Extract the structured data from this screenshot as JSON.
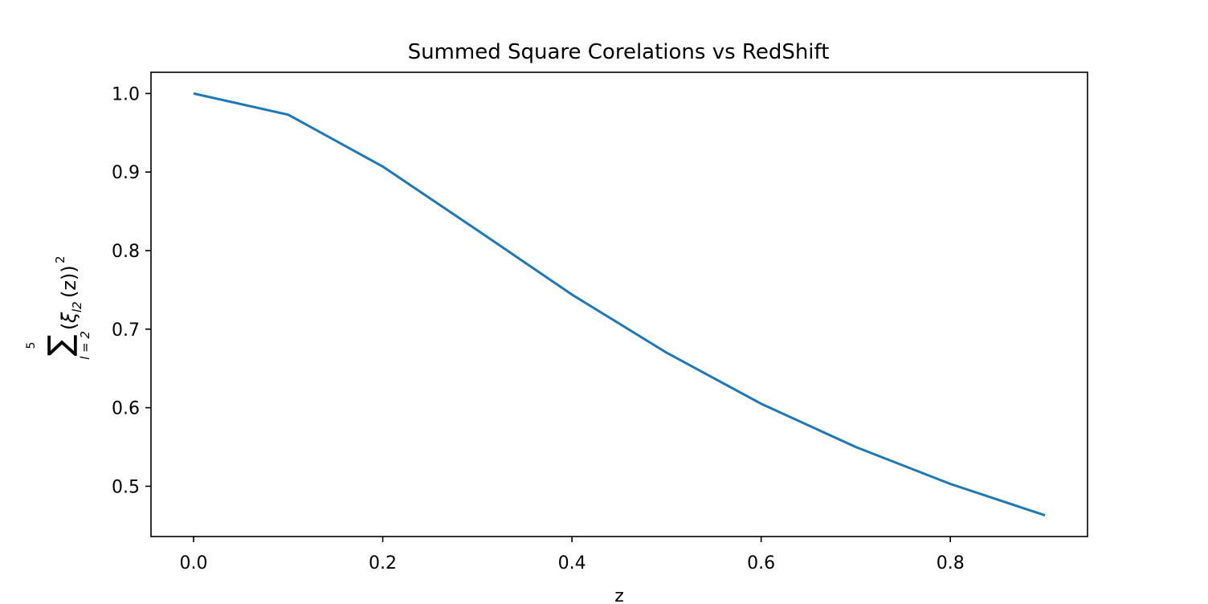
{
  "chart_data": {
    "type": "line",
    "title": "Summed Square Corelations vs RedShift",
    "xlabel": "z",
    "ylabel": {
      "sum_symbol": "∑",
      "upper_limit": "5",
      "lower_limit": "l = 2",
      "open_paren": "(",
      "xi": "ξ",
      "xi_subscript": "l2",
      "argument": "(z))",
      "exponent": "2"
    },
    "x": [
      0.0,
      0.1,
      0.2,
      0.3,
      0.4,
      0.5,
      0.6,
      0.7,
      0.8,
      0.9
    ],
    "series": [
      {
        "values": [
          1.0,
          0.973,
          0.907,
          0.826,
          0.744,
          0.67,
          0.605,
          0.55,
          0.503,
          0.463
        ],
        "color": "#1f77b4"
      }
    ],
    "xlim": [
      -0.045,
      0.945
    ],
    "ylim": [
      0.436,
      1.027
    ],
    "xticks": [
      "0.0",
      "0.2",
      "0.4",
      "0.6",
      "0.8"
    ],
    "yticks": [
      "0.5",
      "0.6",
      "0.7",
      "0.8",
      "0.9",
      "1.0"
    ],
    "grid": false,
    "legend": "none"
  }
}
